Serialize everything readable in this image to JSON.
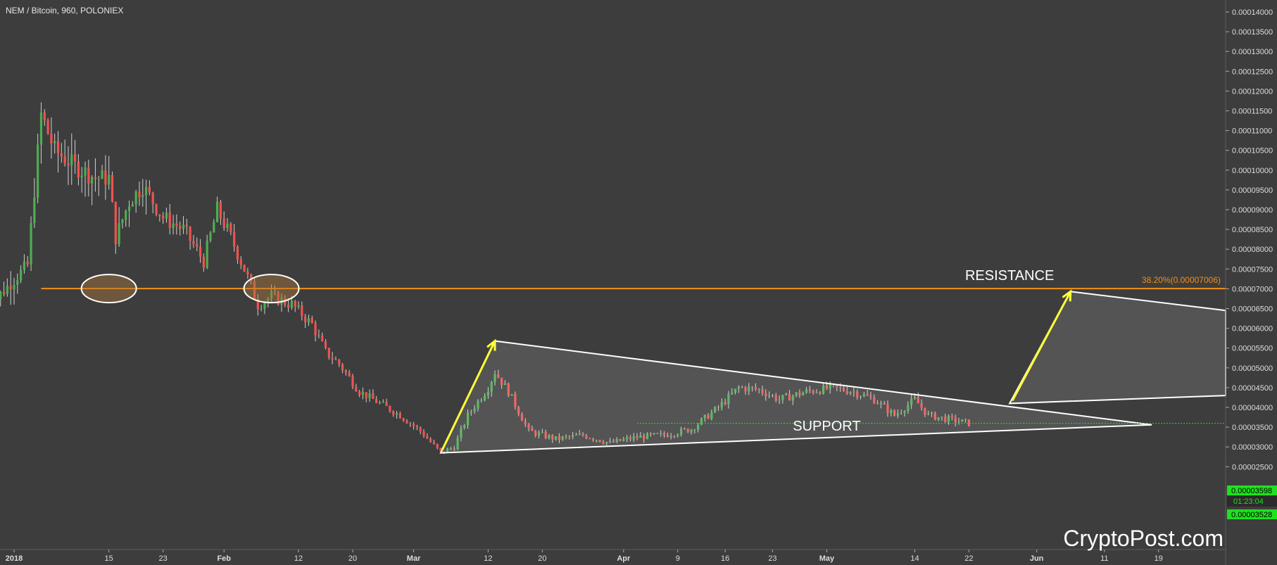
{
  "header": {
    "symbol_title": "NEM / Bitcoin, 960, POLONIEX"
  },
  "watermark": "CryptoPost.com",
  "colors": {
    "background": "#3d3d3d",
    "up": "#4caf50",
    "down": "#ef5350",
    "resistance": "#f28f16",
    "price_tag": "#1fe11f",
    "arrow": "#ffff3a",
    "pattern": "#ffffff"
  },
  "chart_data": {
    "type": "candlestick",
    "title": "NEM / Bitcoin, 960, POLONIEX",
    "ylim": [
      2.3e-05,
      0.000142
    ],
    "x_tick_labels": [
      "2018",
      "15",
      "23",
      "Feb",
      "12",
      "20",
      "Mar",
      "12",
      "20",
      "Apr",
      "9",
      "16",
      "23",
      "May",
      "14",
      "22",
      "Jun",
      "11",
      "19"
    ],
    "x_tick_dates": [
      "2018-01-01",
      "2018-01-15",
      "2018-01-23",
      "2018-02-01",
      "2018-02-12",
      "2018-02-20",
      "2018-03-01",
      "2018-03-12",
      "2018-03-20",
      "2018-04-01",
      "2018-04-09",
      "2018-04-16",
      "2018-04-23",
      "2018-05-01",
      "2018-05-14",
      "2018-05-22",
      "2018-06-01",
      "2018-06-11",
      "2018-06-19"
    ],
    "y_tick_labels": [
      "0.00014000",
      "0.00013500",
      "0.00013000",
      "0.00012500",
      "0.00012000",
      "0.00011500",
      "0.00011000",
      "0.00010500",
      "0.00010000",
      "0.00009500",
      "0.00009000",
      "0.00008500",
      "0.00008000",
      "0.00007500",
      "0.00007000",
      "0.00006500",
      "0.00006000",
      "0.00005500",
      "0.00005000",
      "0.00004500",
      "0.00004000",
      "0.00003500",
      "0.00003000",
      "0.00002500"
    ],
    "price_path": [
      [
        "2017-12-28",
        6.5e-05
      ],
      [
        "2018-01-03",
        7.6e-05
      ],
      [
        "2018-01-05",
        0.000114
      ],
      [
        "2018-01-07",
        0.000105
      ],
      [
        "2018-01-10",
        0.000101
      ],
      [
        "2018-01-13",
        9.8e-05
      ],
      [
        "2018-01-15",
        9.8e-05
      ],
      [
        "2018-01-16",
        8.3e-05
      ],
      [
        "2018-01-18",
        9.2e-05
      ],
      [
        "2018-01-20",
        9.6e-05
      ],
      [
        "2018-01-23",
        8.8e-05
      ],
      [
        "2018-01-26",
        8.5e-05
      ],
      [
        "2018-01-29",
        7.7e-05
      ],
      [
        "2018-01-31",
        9e-05
      ],
      [
        "2018-02-02",
        8.3e-05
      ],
      [
        "2018-02-04",
        7.5e-05
      ],
      [
        "2018-02-06",
        6.6e-05
      ],
      [
        "2018-02-08",
        6.8e-05
      ],
      [
        "2018-02-11",
        6.6e-05
      ],
      [
        "2018-02-14",
        6.1e-05
      ],
      [
        "2018-02-16",
        5.4e-05
      ],
      [
        "2018-02-18",
        5.1e-05
      ],
      [
        "2018-02-21",
        4.4e-05
      ],
      [
        "2018-02-24",
        4.1e-05
      ],
      [
        "2018-02-27",
        3.8e-05
      ],
      [
        "2018-03-02",
        3.4e-05
      ],
      [
        "2018-03-05",
        2.85e-05
      ],
      [
        "2018-03-07",
        3e-05
      ],
      [
        "2018-03-09",
        3.8e-05
      ],
      [
        "2018-03-12",
        4.5e-05
      ],
      [
        "2018-03-13",
        4.9e-05
      ],
      [
        "2018-03-15",
        4.4e-05
      ],
      [
        "2018-03-18",
        3.4e-05
      ],
      [
        "2018-03-22",
        3.2e-05
      ],
      [
        "2018-03-26",
        3.3e-05
      ],
      [
        "2018-03-30",
        3.1e-05
      ],
      [
        "2018-04-03",
        3.25e-05
      ],
      [
        "2018-04-07",
        3.3e-05
      ],
      [
        "2018-04-11",
        3.45e-05
      ],
      [
        "2018-04-15",
        4e-05
      ],
      [
        "2018-04-18",
        4.5e-05
      ],
      [
        "2018-04-21",
        4.45e-05
      ],
      [
        "2018-04-24",
        4.2e-05
      ],
      [
        "2018-04-28",
        4.4e-05
      ],
      [
        "2018-05-02",
        4.5e-05
      ],
      [
        "2018-05-05",
        4.4e-05
      ],
      [
        "2018-05-08",
        4.2e-05
      ],
      [
        "2018-05-11",
        3.8e-05
      ],
      [
        "2018-05-14",
        4.2e-05
      ],
      [
        "2018-05-16",
        3.8e-05
      ],
      [
        "2018-05-19",
        3.7e-05
      ],
      [
        "2018-05-22",
        3.6e-05
      ]
    ],
    "lines": [
      {
        "name": "resistance",
        "price": 7.006e-05,
        "from": "2018-01-05",
        "to": "2018-06-29"
      }
    ],
    "annotations": [
      {
        "text": "RESISTANCE",
        "date": "2018-05-28",
        "price": 7.22e-05
      },
      {
        "text": "38.20%(0.00007006)",
        "date": "2018-06-26",
        "price": 7.1e-05
      },
      {
        "text": "SUPPORT",
        "date": "2018-05-01",
        "price": 3.45e-05
      }
    ],
    "last_price": "0.00003598",
    "countdown": "01:23:04",
    "low_price": "0.00003528",
    "y_ticks": [
      0.00014,
      0.000135,
      0.00013,
      0.000125,
      0.00012,
      0.000115,
      0.00011,
      0.000105,
      0.0001,
      9.5e-05,
      9e-05,
      8.5e-05,
      8e-05,
      7.5e-05,
      7e-05,
      6.5e-05,
      6e-05,
      5.5e-05,
      5e-05,
      4.5e-05,
      4e-05,
      3.5e-05,
      3e-05,
      2.5e-05
    ]
  }
}
